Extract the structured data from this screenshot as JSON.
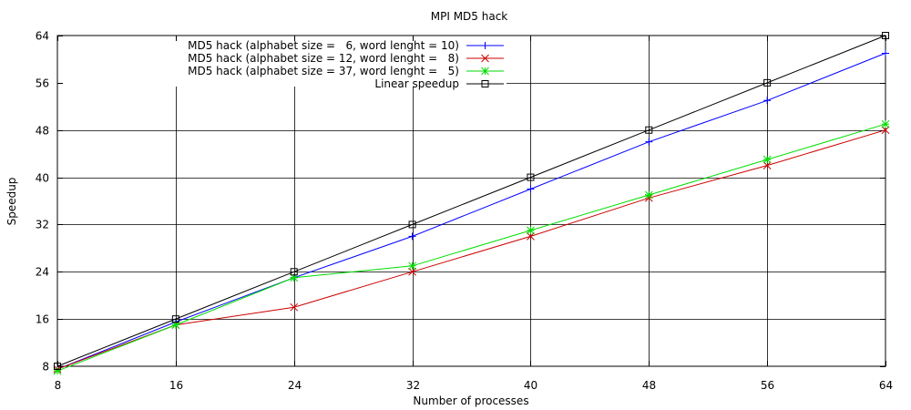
{
  "chart_data": {
    "type": "line",
    "title": "MPI MD5 hack",
    "xlabel": "Number of processes",
    "ylabel": "Speedup",
    "xlim": [
      8,
      64
    ],
    "ylim": [
      8,
      64
    ],
    "x_ticks": [
      "8",
      "16",
      "24",
      "32",
      "40",
      "48",
      "56",
      "64"
    ],
    "y_ticks": [
      "8",
      "16",
      "24",
      "32",
      "40",
      "48",
      "56",
      "64"
    ],
    "grid": true,
    "legend_position": "top-left",
    "x": [
      8,
      16,
      24,
      32,
      40,
      48,
      56,
      64
    ],
    "series": [
      {
        "name": "MD5 hack (alphabet size =   6, word lenght = 10)",
        "color": "#0000ff",
        "marker": "plus",
        "values": [
          7.5,
          15.5,
          23,
          30,
          38,
          46,
          53,
          61
        ]
      },
      {
        "name": "MD5 hack (alphabet size = 12, word lenght =   8)",
        "color": "#cc0000",
        "marker": "cross",
        "values": [
          7.5,
          15,
          18,
          24,
          30,
          36.5,
          42,
          48
        ]
      },
      {
        "name": "MD5 hack (alphabet size = 37, word lenght =   5)",
        "color": "#00dd00",
        "marker": "star",
        "values": [
          7.2,
          15,
          23,
          25,
          31,
          37,
          43,
          49
        ]
      },
      {
        "name": "Linear speedup",
        "color": "#000000",
        "marker": "square",
        "values": [
          8,
          16,
          24,
          32,
          40,
          48,
          56,
          64
        ]
      }
    ]
  }
}
